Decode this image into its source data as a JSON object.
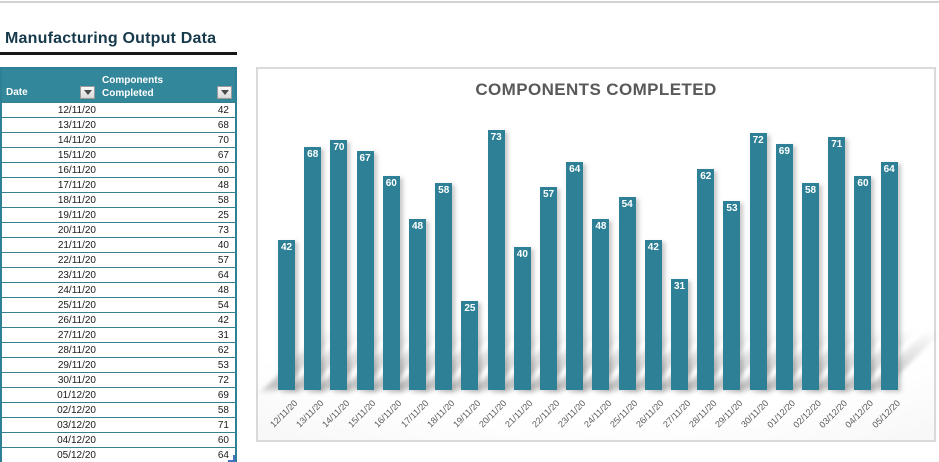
{
  "sheet_title": "Manufacturing Output Data",
  "table": {
    "header": {
      "date_label": "Date",
      "components_label": "Components Completed"
    },
    "rows": [
      [
        "12/11/20",
        42
      ],
      [
        "13/11/20",
        68
      ],
      [
        "14/11/20",
        70
      ],
      [
        "15/11/20",
        67
      ],
      [
        "16/11/20",
        60
      ],
      [
        "17/11/20",
        48
      ],
      [
        "18/11/20",
        58
      ],
      [
        "19/11/20",
        25
      ],
      [
        "20/11/20",
        73
      ],
      [
        "21/11/20",
        40
      ],
      [
        "22/11/20",
        57
      ],
      [
        "23/11/20",
        64
      ],
      [
        "24/11/20",
        48
      ],
      [
        "25/11/20",
        54
      ],
      [
        "26/11/20",
        42
      ],
      [
        "27/11/20",
        31
      ],
      [
        "28/11/20",
        62
      ],
      [
        "29/11/20",
        53
      ],
      [
        "30/11/20",
        72
      ],
      [
        "01/12/20",
        69
      ],
      [
        "02/12/20",
        58
      ],
      [
        "03/12/20",
        71
      ],
      [
        "04/12/20",
        60
      ],
      [
        "05/12/20",
        64
      ]
    ]
  },
  "chart_data": {
    "type": "bar",
    "title": "COMPONENTS COMPLETED",
    "categories": [
      "12/11/20",
      "13/11/20",
      "14/11/20",
      "15/11/20",
      "16/11/20",
      "17/11/20",
      "18/11/20",
      "19/11/20",
      "20/11/20",
      "21/11/20",
      "22/11/20",
      "23/11/20",
      "24/11/20",
      "25/11/20",
      "26/11/20",
      "27/11/20",
      "28/11/20",
      "29/11/20",
      "30/11/20",
      "01/12/20",
      "02/12/20",
      "03/12/20",
      "04/12/20",
      "05/12/20"
    ],
    "values": [
      42,
      68,
      70,
      67,
      60,
      48,
      58,
      25,
      73,
      40,
      57,
      64,
      48,
      54,
      42,
      31,
      62,
      53,
      72,
      69,
      58,
      71,
      60,
      64
    ],
    "xlabel": "",
    "ylabel": "",
    "ylim": [
      0,
      90
    ],
    "grid": false,
    "legend": false,
    "data_labels": "inside-end",
    "x_tick_rotation": -45
  },
  "colors": {
    "bar_fill": "#2E8096",
    "table_header_fill": "#33879B",
    "table_grid": "#35818F",
    "sheet_title_text": "#16394B",
    "chart_title_text": "#595959",
    "axis_tick_text": "#595959",
    "chart_border": "#D9D9D9",
    "data_label_text": "#FFFFFF",
    "resize_handle": "#4472C4"
  }
}
